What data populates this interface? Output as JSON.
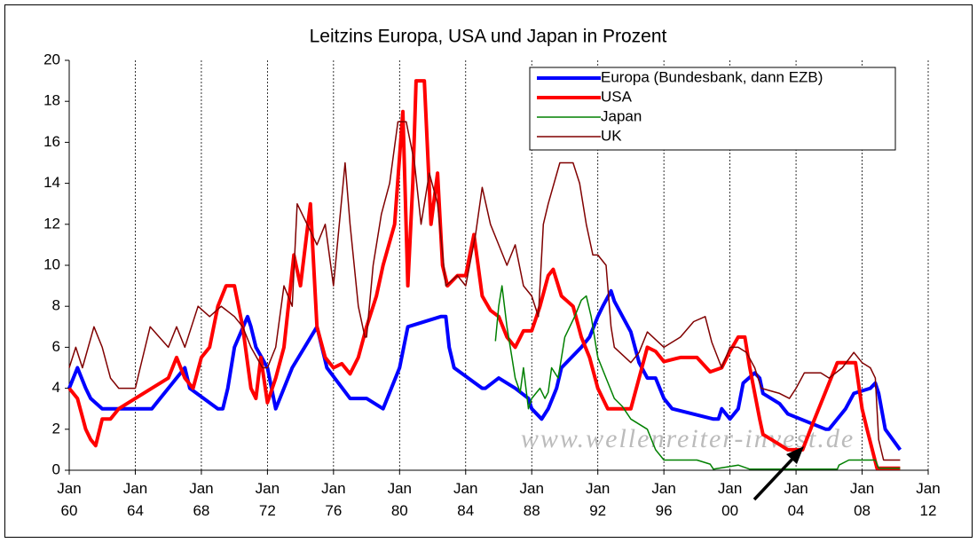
{
  "chart_data": {
    "type": "line",
    "title": "Leitzins Europa, USA und Japan in Prozent",
    "annotation": "www.wellenreiter-invest.de",
    "xlim": [
      1960,
      2012
    ],
    "xticks": [
      {
        "value": 1960,
        "label": "Jan 60"
      },
      {
        "value": 1964,
        "label": "Jan 64"
      },
      {
        "value": 1968,
        "label": "Jan 68"
      },
      {
        "value": 1972,
        "label": "Jan 72"
      },
      {
        "value": 1976,
        "label": "Jan 76"
      },
      {
        "value": 1980,
        "label": "Jan 80"
      },
      {
        "value": 1984,
        "label": "Jan 84"
      },
      {
        "value": 1988,
        "label": "Jan 88"
      },
      {
        "value": 1992,
        "label": "Jan 92"
      },
      {
        "value": 1996,
        "label": "Jan 96"
      },
      {
        "value": 2000,
        "label": "Jan 00"
      },
      {
        "value": 2004,
        "label": "Jan 04"
      },
      {
        "value": 2008,
        "label": "Jan 08"
      },
      {
        "value": 2012,
        "label": "Jan 12"
      }
    ],
    "ylim": [
      0,
      20
    ],
    "yticks": [
      0,
      2,
      4,
      6,
      8,
      10,
      12,
      14,
      16,
      18,
      20
    ],
    "grid": true,
    "legend": "top-right",
    "series": [
      {
        "name": "Europa (Bundesbank, dann EZB)",
        "color": "#0000ff",
        "width": 4,
        "x": [
          1960,
          1960.5,
          1961,
          1961.3,
          1962,
          1965,
          1965.5,
          1966,
          1967,
          1967.3,
          1969,
          1969.3,
          1969.6,
          1970,
          1970.8,
          1971,
          1971.3,
          1972,
          1972.5,
          1973,
          1973.5,
          1975,
          1975.6,
          1977,
          1978,
          1979,
          1979.5,
          1980,
          1980.5,
          1982.5,
          1982.8,
          1983,
          1983.3,
          1985,
          1985.2,
          1986,
          1987,
          1987.8,
          1988,
          1988.6,
          1989,
          1989.5,
          1989.8,
          1991,
          1991.5,
          1992,
          1992.3,
          1992.8,
          1993,
          1993.5,
          1994,
          1994.5,
          1995,
          1995.5,
          1996,
          1996.5,
          1999,
          1999.3,
          1999.5,
          2000,
          2000.5,
          2000.8,
          2001.5,
          2001.8,
          2002,
          2003,
          2003.5,
          2005.8,
          2006,
          2006.5,
          2007,
          2007.5,
          2008.5,
          2008.8,
          2009,
          2009.4,
          2010.3
        ],
        "values": [
          4,
          5,
          4,
          3.5,
          3,
          3,
          3.5,
          4,
          5,
          4,
          3,
          3,
          4,
          6,
          7.5,
          7,
          6,
          5,
          3,
          4,
          5,
          7,
          5,
          3.5,
          3.5,
          3,
          4,
          5,
          7,
          7.5,
          7.5,
          6,
          5,
          4,
          4,
          4.5,
          4,
          3.5,
          3,
          2.5,
          3,
          4,
          5,
          6,
          6.5,
          7.5,
          8,
          8.75,
          8.25,
          7.5,
          6.75,
          5.25,
          4.5,
          4.5,
          3.5,
          3,
          2.5,
          2.5,
          3,
          2.5,
          3,
          4.25,
          4.75,
          4.5,
          3.75,
          3.25,
          2.75,
          2,
          2,
          2.5,
          3,
          3.75,
          4,
          4.25,
          3.75,
          2,
          1
        ]
      },
      {
        "name": "USA",
        "color": "#ff0000",
        "width": 4,
        "x": [
          1960,
          1960.5,
          1961,
          1961.3,
          1961.6,
          1962,
          1962.5,
          1963,
          1964,
          1965,
          1966,
          1966.5,
          1967,
          1967.5,
          1968,
          1968.5,
          1969,
          1969.5,
          1970,
          1970.5,
          1971,
          1971.3,
          1971.6,
          1972,
          1972.5,
          1973,
          1973.6,
          1974,
          1974.6,
          1975,
          1975.5,
          1976,
          1976.5,
          1977,
          1977.5,
          1978,
          1978.6,
          1979,
          1979.7,
          1980.2,
          1980.5,
          1980.8,
          1981,
          1981.5,
          1981.9,
          1982.3,
          1982.6,
          1982.9,
          1983.5,
          1984,
          1984.5,
          1985,
          1985.5,
          1986,
          1986.5,
          1987,
          1987.5,
          1988,
          1988.5,
          1989,
          1989.3,
          1989.8,
          1990.5,
          1991,
          1991.5,
          1992,
          1992.6,
          1994,
          1994.5,
          1995,
          1995.5,
          1996,
          1997,
          1998,
          1998.8,
          1999.5,
          2000,
          2000.5,
          2000.9,
          2001.2,
          2001.8,
          2002,
          2003,
          2003.5,
          2004.4,
          2005,
          2005.5,
          2006,
          2006.5,
          2007.6,
          2008,
          2008.3,
          2008.9,
          2010.3
        ],
        "values": [
          4,
          3.5,
          2,
          1.5,
          1.2,
          2.5,
          2.5,
          3,
          3.5,
          4,
          4.5,
          5.5,
          4.5,
          4,
          5.5,
          6,
          8,
          9,
          9,
          7,
          4,
          3.5,
          5.5,
          3.3,
          4.5,
          6,
          10.5,
          9,
          13,
          7,
          5.5,
          5,
          5.2,
          4.7,
          5.5,
          7,
          8.5,
          10,
          12,
          17.5,
          9,
          14,
          19,
          19,
          12,
          14.5,
          10,
          9,
          9.5,
          9.5,
          11.5,
          8.5,
          7.8,
          7.5,
          6.5,
          6,
          6.8,
          6.8,
          8,
          9.5,
          9.8,
          8.5,
          8,
          6.5,
          5.5,
          4,
          3,
          3,
          4.5,
          6,
          5.8,
          5.3,
          5.5,
          5.5,
          4.8,
          5,
          5.8,
          6.5,
          6.5,
          5,
          2.5,
          1.75,
          1.25,
          1,
          1,
          2.25,
          3.25,
          4.25,
          5.25,
          5.25,
          3,
          2,
          0.1,
          0.1
        ]
      },
      {
        "name": "Japan",
        "color": "#008000",
        "width": 1.5,
        "x": [
          1985.8,
          1986,
          1986.2,
          1986.5,
          1986.8,
          1987,
          1987.3,
          1987.5,
          1987.8,
          1988,
          1988.5,
          1988.8,
          1989,
          1989.2,
          1989.6,
          1990,
          1990.6,
          1991,
          1991.3,
          1991.6,
          1992,
          1992.5,
          1993,
          1993.5,
          1994,
          1995,
          1995.5,
          1996,
          1998,
          1998.8,
          1999,
          2000.5,
          2001.2,
          2006.5,
          2006.6,
          2007.2,
          2008.8,
          2009,
          2010.3
        ],
        "values": [
          6.3,
          8,
          9,
          7,
          5.5,
          4.5,
          3.8,
          5,
          3,
          3.5,
          4,
          3.5,
          3.8,
          5,
          4.5,
          6.5,
          7.5,
          8.3,
          8.5,
          7.5,
          5.5,
          4.5,
          3.5,
          3.1,
          2.5,
          2,
          1,
          0.5,
          0.5,
          0.3,
          0.05,
          0.25,
          0.05,
          0.05,
          0.25,
          0.5,
          0.5,
          0.1,
          0.1
        ]
      },
      {
        "name": "UK",
        "color": "#800000",
        "width": 1.5,
        "x": [
          1960,
          1960.4,
          1960.8,
          1961.5,
          1962,
          1962.5,
          1963,
          1964,
          1964.3,
          1964.9,
          1966,
          1966.5,
          1967,
          1967.8,
          1968.5,
          1969.2,
          1970,
          1970.5,
          1971,
          1971.7,
          1972,
          1972.5,
          1973,
          1973.5,
          1973.8,
          1974.4,
          1975,
          1975.5,
          1976,
          1976.7,
          1977,
          1977.5,
          1977.9,
          1978,
          1978.4,
          1978.9,
          1979.4,
          1979.9,
          1980.4,
          1980.9,
          1981.3,
          1981.8,
          1982.3,
          1982.8,
          1983.5,
          1984,
          1984.6,
          1985,
          1985.5,
          1986,
          1986.5,
          1987,
          1987.5,
          1988,
          1988.4,
          1988.7,
          1989,
          1989.7,
          1990.5,
          1990.9,
          1991.3,
          1991.7,
          1992,
          1992.5,
          1992.8,
          1993,
          1994,
          1994.5,
          1995,
          1996,
          1997,
          1997.8,
          1998.5,
          1998.9,
          1999.5,
          2000,
          2000.5,
          2001,
          2001.5,
          2001.9,
          2003,
          2003.6,
          2004,
          2004.5,
          2005.5,
          2006,
          2006.8,
          2007.5,
          2008,
          2008.5,
          2008.8,
          2009,
          2009.3,
          2010.3
        ],
        "values": [
          5,
          6,
          5,
          7,
          6,
          4.5,
          4,
          4,
          5,
          7,
          6,
          7,
          6,
          8,
          7.5,
          8,
          7.5,
          7,
          6,
          5,
          5,
          6,
          9,
          8,
          13,
          12,
          11,
          12,
          9,
          15,
          12,
          8,
          6.5,
          6.5,
          10,
          12.5,
          14,
          17,
          17,
          15,
          12,
          14.5,
          13,
          9,
          9.5,
          9,
          11.5,
          13.8,
          12,
          11,
          10,
          11,
          9,
          8.5,
          7.5,
          12,
          13,
          15,
          15,
          14,
          12,
          10.5,
          10.5,
          10,
          7,
          6,
          5.25,
          5.75,
          6.75,
          6,
          6.5,
          7.25,
          7.5,
          6.25,
          5,
          6,
          6,
          5.75,
          5,
          4,
          3.75,
          3.5,
          4,
          4.75,
          4.75,
          4.5,
          5,
          5.75,
          5.25,
          5,
          4.5,
          1.5,
          0.5,
          0.5
        ]
      }
    ]
  }
}
